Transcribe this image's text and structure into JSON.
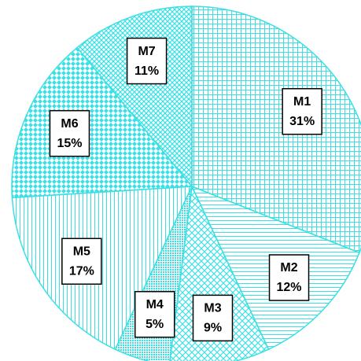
{
  "chart_data": {
    "type": "pie",
    "categories": [
      "M1",
      "M2",
      "M3",
      "M4",
      "M5",
      "M6",
      "M7"
    ],
    "values": [
      31,
      12,
      9,
      5,
      17,
      15,
      11
    ],
    "value_labels": [
      "31%",
      "12%",
      "9%",
      "5%",
      "17%",
      "15%",
      "11%"
    ],
    "color": "#3ce0e4"
  }
}
